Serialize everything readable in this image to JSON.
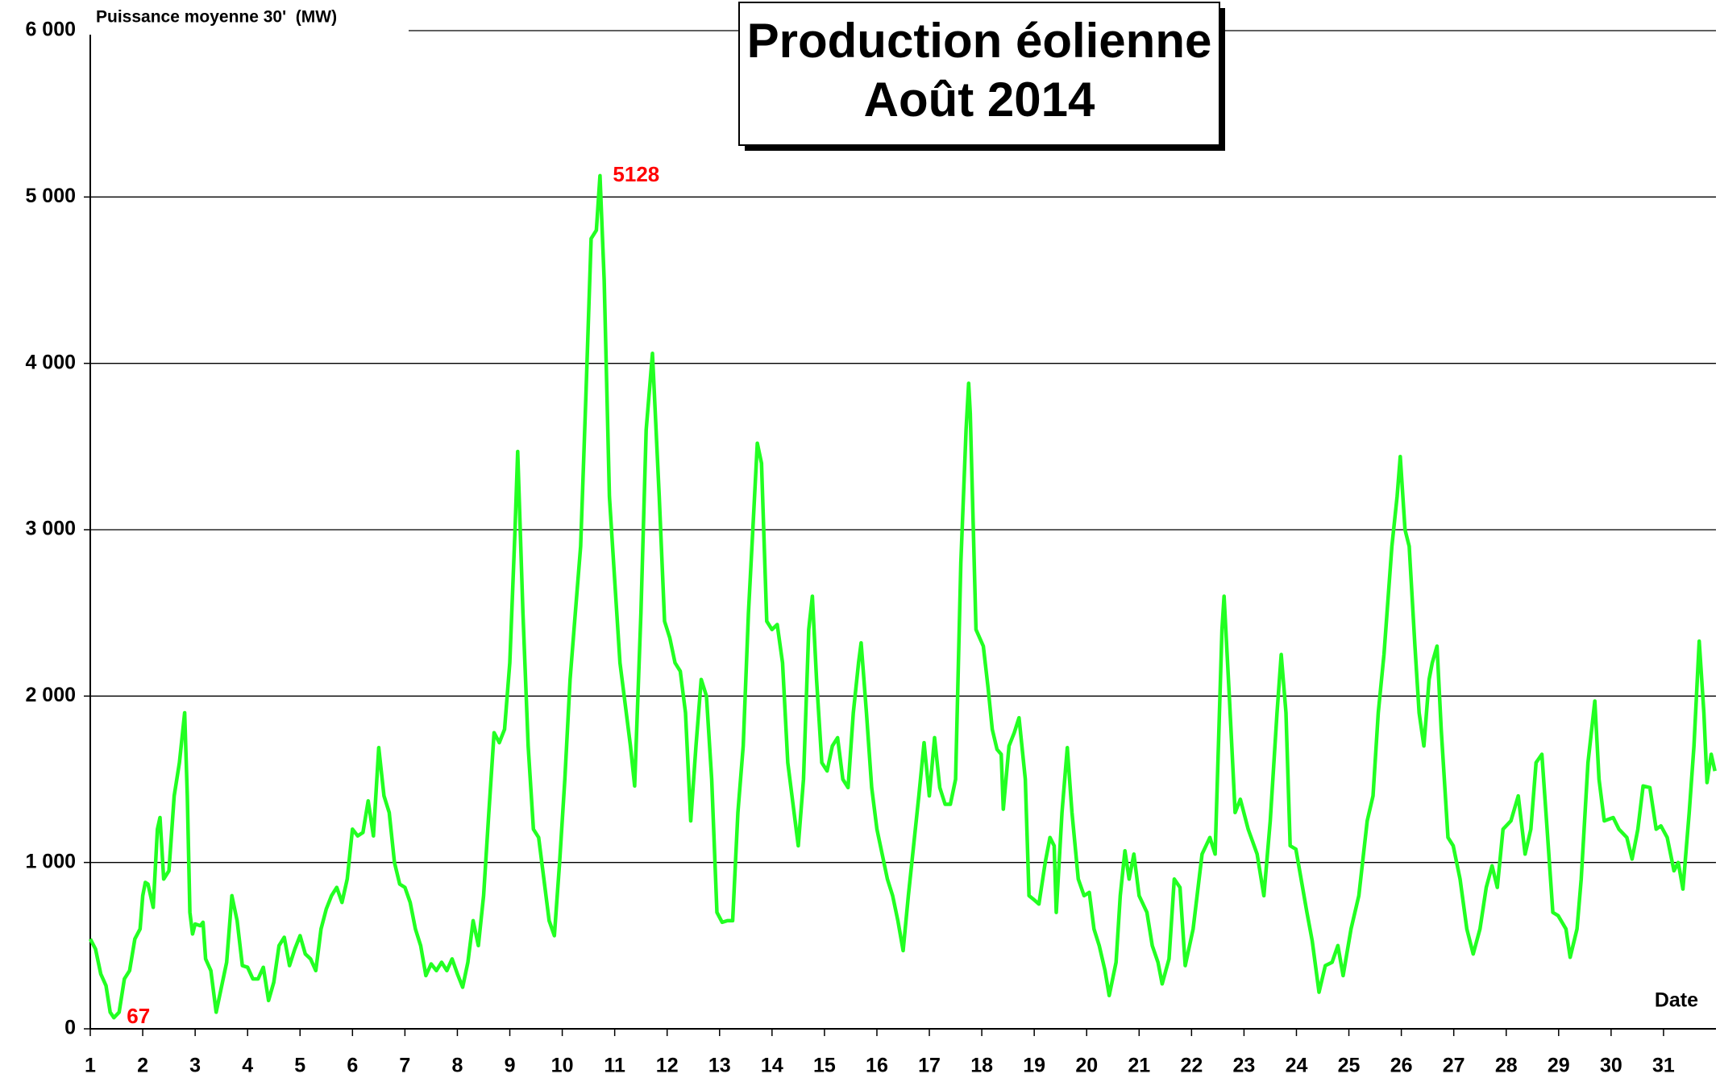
{
  "chart_data": {
    "type": "line",
    "title": "Production éolienne",
    "subtitle": "Août 2014",
    "y_label": "Puissance moyenne 30'  (MW)",
    "x_label": "Date",
    "color": "#22ff22",
    "grid": true,
    "xlim": [
      1,
      32
    ],
    "xticks": [
      1,
      2,
      3,
      4,
      5,
      6,
      7,
      8,
      9,
      10,
      11,
      12,
      13,
      14,
      15,
      16,
      17,
      18,
      19,
      20,
      21,
      22,
      23,
      24,
      25,
      26,
      27,
      28,
      29,
      30,
      31
    ],
    "ylim": [
      0,
      6000
    ],
    "yticks": [
      0,
      {
        "value": 1000,
        "label": "1 000"
      },
      {
        "value": 2000,
        "label": "2 000"
      },
      {
        "value": 3000,
        "label": "3 000"
      },
      {
        "value": 4000,
        "label": "4 000"
      },
      {
        "value": 5000,
        "label": "5 000"
      },
      {
        "value": 6000,
        "label": "6 000"
      }
    ],
    "annotations": [
      {
        "x": 10.72,
        "value": 5128,
        "color": "#ff0000"
      },
      {
        "x": 1.45,
        "value": 67,
        "color": "#ff0000"
      }
    ],
    "x": [
      1.0,
      1.1,
      1.2,
      1.3,
      1.38,
      1.45,
      1.55,
      1.65,
      1.75,
      1.85,
      1.95,
      2.0,
      2.05,
      2.1,
      2.2,
      2.28,
      2.33,
      2.4,
      2.5,
      2.6,
      2.7,
      2.8,
      2.85,
      2.9,
      2.95,
      3.0,
      3.1,
      3.15,
      3.2,
      3.3,
      3.4,
      3.5,
      3.6,
      3.7,
      3.8,
      3.9,
      4.0,
      4.1,
      4.2,
      4.3,
      4.4,
      4.5,
      4.6,
      4.7,
      4.8,
      4.9,
      5.0,
      5.1,
      5.2,
      5.3,
      5.4,
      5.5,
      5.6,
      5.7,
      5.8,
      5.9,
      6.0,
      6.1,
      6.2,
      6.3,
      6.4,
      6.5,
      6.6,
      6.7,
      6.8,
      6.9,
      7.0,
      7.1,
      7.2,
      7.3,
      7.4,
      7.5,
      7.6,
      7.7,
      7.8,
      7.9,
      8.0,
      8.1,
      8.2,
      8.3,
      8.4,
      8.5,
      8.6,
      8.7,
      8.8,
      8.9,
      9.0,
      9.1,
      9.15,
      9.25,
      9.35,
      9.45,
      9.55,
      9.65,
      9.75,
      9.85,
      9.95,
      10.05,
      10.15,
      10.25,
      10.35,
      10.45,
      10.55,
      10.65,
      10.72,
      10.8,
      10.9,
      11.0,
      11.1,
      11.2,
      11.3,
      11.38,
      11.5,
      11.6,
      11.72,
      11.85,
      11.95,
      12.05,
      12.15,
      12.25,
      12.35,
      12.45,
      12.55,
      12.65,
      12.75,
      12.85,
      12.95,
      13.05,
      13.15,
      13.25,
      13.35,
      13.45,
      13.55,
      13.65,
      13.72,
      13.8,
      13.9,
      14.0,
      14.1,
      14.2,
      14.3,
      14.4,
      14.5,
      14.6,
      14.7,
      14.77,
      14.85,
      14.95,
      15.05,
      15.15,
      15.25,
      15.35,
      15.45,
      15.55,
      15.65,
      15.7,
      15.8,
      15.9,
      16.0,
      16.1,
      16.2,
      16.3,
      16.4,
      16.5,
      16.6,
      16.7,
      16.8,
      16.9,
      17.0,
      17.1,
      17.2,
      17.3,
      17.4,
      17.5,
      17.6,
      17.7,
      17.75,
      17.78,
      17.89,
      18.03,
      18.12,
      18.2,
      18.29,
      18.37,
      18.41,
      18.52,
      18.62,
      18.71,
      18.83,
      18.9,
      18.98,
      19.09,
      19.21,
      19.3,
      19.38,
      19.42,
      19.53,
      19.63,
      19.72,
      19.84,
      19.95,
      20.05,
      20.14,
      20.24,
      20.35,
      20.43,
      20.56,
      20.64,
      20.73,
      20.81,
      20.9,
      21.0,
      21.15,
      21.25,
      21.36,
      21.44,
      21.57,
      21.67,
      21.78,
      21.88,
      22.03,
      22.2,
      22.35,
      22.45,
      22.58,
      22.62,
      22.72,
      22.83,
      22.93,
      23.08,
      23.25,
      23.38,
      23.5,
      23.63,
      23.71,
      23.8,
      23.88,
      23.99,
      24.09,
      24.2,
      24.3,
      24.43,
      24.55,
      24.68,
      24.79,
      24.89,
      25.04,
      25.19,
      25.35,
      25.46,
      25.56,
      25.67,
      25.82,
      25.92,
      25.98,
      26.07,
      26.15,
      26.26,
      26.34,
      26.43,
      26.53,
      26.59,
      26.68,
      26.76,
      26.89,
      26.99,
      27.12,
      27.25,
      27.37,
      27.5,
      27.62,
      27.73,
      27.83,
      27.94,
      28.09,
      28.23,
      28.36,
      28.47,
      28.57,
      28.68,
      28.78,
      28.89,
      28.99,
      29.14,
      29.22,
      29.35,
      29.43,
      29.56,
      29.69,
      29.77,
      29.87,
      30.04,
      30.15,
      30.3,
      30.4,
      30.51,
      30.61,
      30.74,
      30.86,
      30.95,
      31.07,
      31.2,
      31.28,
      31.37,
      31.49,
      31.58,
      31.68,
      31.77,
      31.83,
      31.91,
      31.98
    ],
    "values": [
      540,
      480,
      330,
      260,
      100,
      67,
      100,
      300,
      350,
      540,
      600,
      800,
      880,
      870,
      730,
      1200,
      1270,
      900,
      950,
      1400,
      1600,
      1900,
      1400,
      700,
      570,
      630,
      620,
      640,
      420,
      350,
      100,
      250,
      400,
      800,
      650,
      380,
      370,
      300,
      300,
      370,
      170,
      280,
      500,
      550,
      380,
      480,
      560,
      450,
      420,
      350,
      600,
      720,
      800,
      850,
      760,
      900,
      1200,
      1160,
      1180,
      1370,
      1160,
      1690,
      1400,
      1300,
      1000,
      870,
      850,
      760,
      600,
      500,
      320,
      390,
      350,
      400,
      350,
      420,
      330,
      250,
      400,
      650,
      500,
      800,
      1300,
      1780,
      1720,
      1800,
      2200,
      3000,
      3470,
      2500,
      1700,
      1200,
      1150,
      900,
      650,
      560,
      1000,
      1500,
      2100,
      2500,
      2900,
      3800,
      4750,
      4800,
      5128,
      4500,
      3200,
      2700,
      2200,
      1950,
      1700,
      1460,
      2500,
      3600,
      4060,
      3200,
      2450,
      2350,
      2200,
      2150,
      1900,
      1250,
      1700,
      2100,
      2000,
      1500,
      700,
      640,
      650,
      650,
      1300,
      1700,
      2500,
      3100,
      3520,
      3400,
      2450,
      2400,
      2430,
      2200,
      1600,
      1350,
      1100,
      1500,
      2400,
      2600,
      2100,
      1600,
      1550,
      1700,
      1750,
      1500,
      1450,
      1900,
      2200,
      2320,
      1900,
      1450,
      1200,
      1050,
      900,
      800,
      650,
      470,
      800,
      1100,
      1400,
      1720,
      1400,
      1750,
      1450,
      1350,
      1350,
      1500,
      2800,
      3600,
      3880,
      3700,
      2400,
      2300,
      2050,
      1800,
      1680,
      1650,
      1320,
      1700,
      1780,
      1870,
      1500,
      800,
      780,
      750,
      1000,
      1150,
      1100,
      700,
      1300,
      1690,
      1300,
      900,
      800,
      820,
      600,
      500,
      350,
      200,
      400,
      800,
      1070,
      900,
      1050,
      800,
      700,
      500,
      400,
      270,
      420,
      900,
      850,
      380,
      600,
      1050,
      1150,
      1050,
      2400,
      2600,
      2000,
      1300,
      1380,
      1200,
      1050,
      800,
      1250,
      1900,
      2250,
      1900,
      1100,
      1080,
      900,
      700,
      530,
      220,
      380,
      400,
      500,
      320,
      600,
      800,
      1250,
      1400,
      1900,
      2250,
      2900,
      3200,
      3440,
      3000,
      2900,
      2300,
      1900,
      1700,
      2100,
      2200,
      2300,
      1800,
      1150,
      1100,
      900,
      600,
      450,
      600,
      850,
      980,
      850,
      1200,
      1250,
      1400,
      1050,
      1200,
      1600,
      1650,
      1200,
      700,
      680,
      600,
      430,
      600,
      900,
      1600,
      1970,
      1500,
      1250,
      1270,
      1200,
      1150,
      1020,
      1200,
      1460,
      1450,
      1200,
      1220,
      1150,
      950,
      1000,
      840,
      1300,
      1700,
      2330,
      1900,
      1480,
      1650,
      1550
    ]
  }
}
